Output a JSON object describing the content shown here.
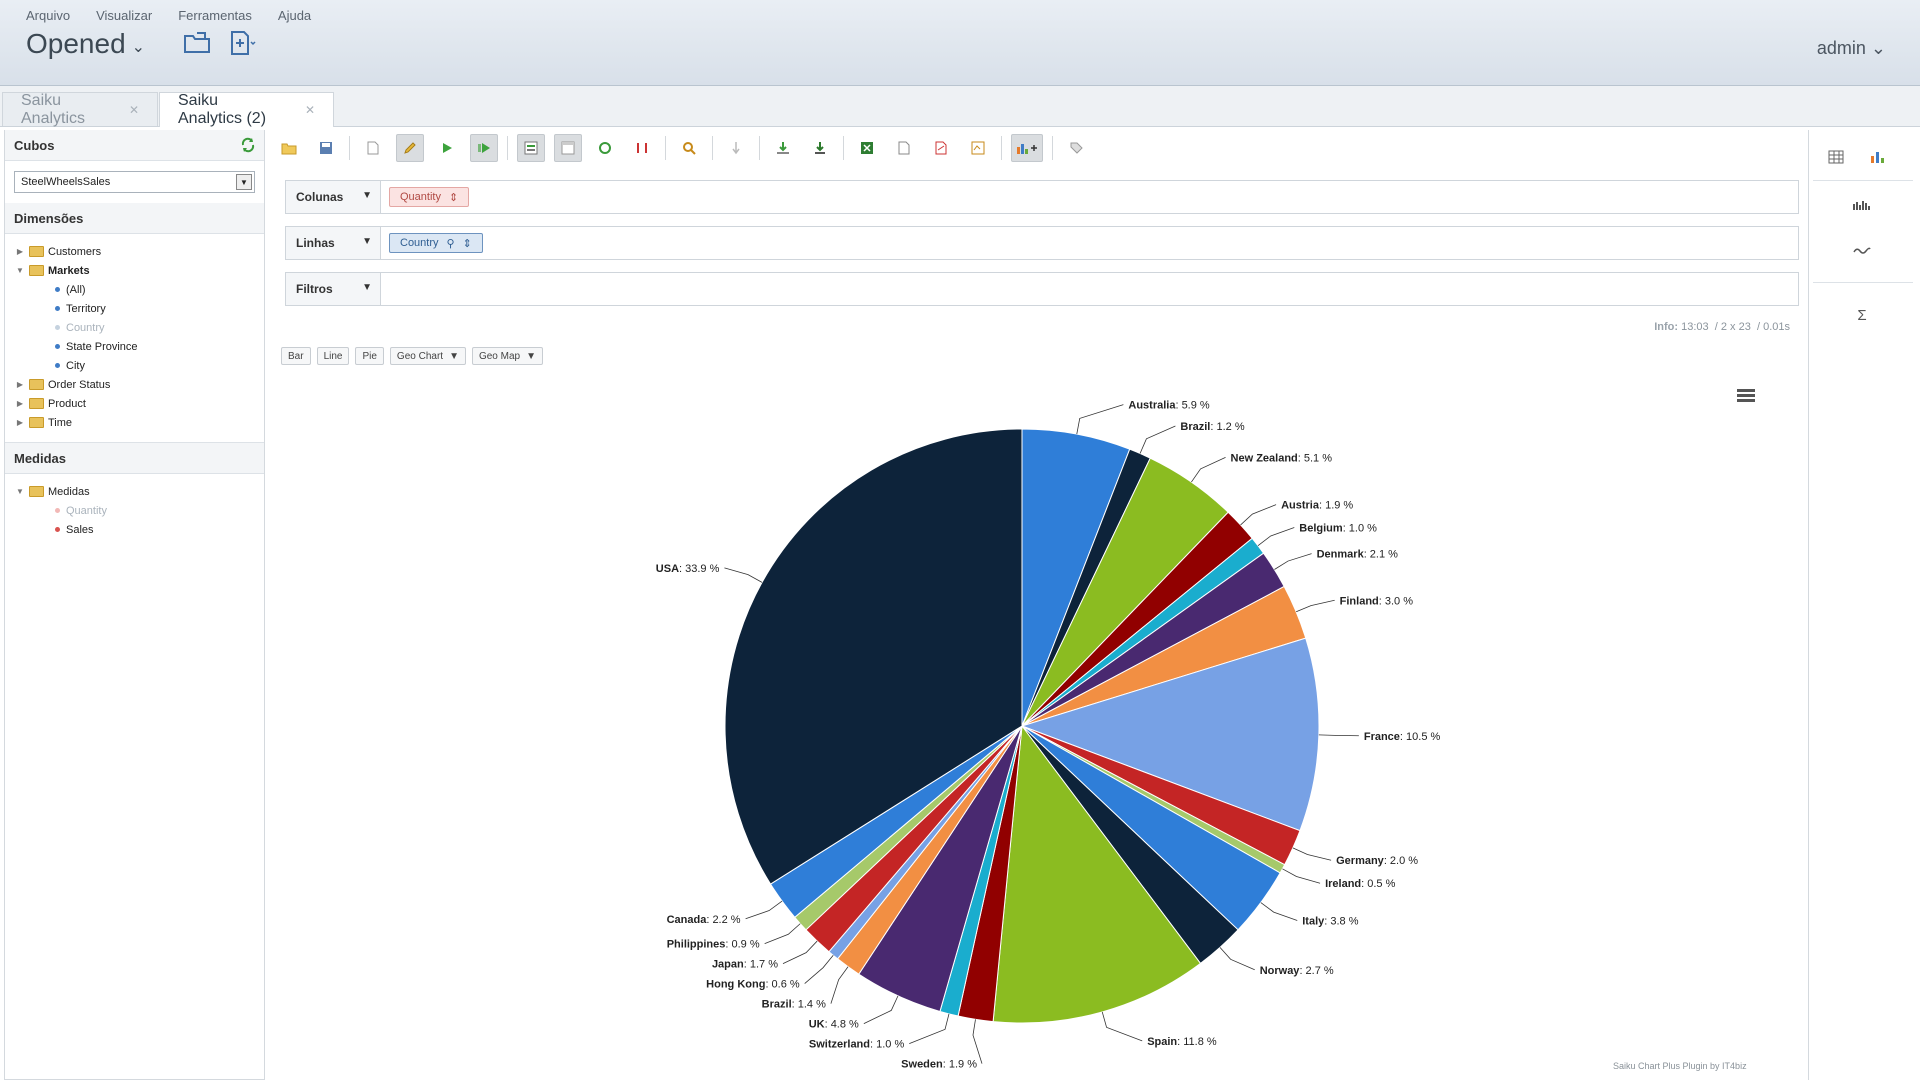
{
  "header": {
    "menu": [
      "Arquivo",
      "Visualizar",
      "Ferramentas",
      "Ajuda"
    ],
    "title": "Opened",
    "user": "admin"
  },
  "tabs": [
    {
      "label": "Saiku Analytics",
      "active": false
    },
    {
      "label": "Saiku Analytics (2)",
      "active": true
    }
  ],
  "left": {
    "cubes_title": "Cubos",
    "cube_selected": "SteelWheelsSales",
    "dimensions_title": "Dimensões",
    "dimensions": {
      "customers": "Customers",
      "markets": "Markets",
      "levels": [
        "(All)",
        "Territory",
        "Country",
        "State Province",
        "City"
      ],
      "order_status": "Order Status",
      "product": "Product",
      "time": "Time"
    },
    "measures_title": "Medidas",
    "measures_folder": "Medidas",
    "measures": [
      "Quantity",
      "Sales"
    ]
  },
  "query": {
    "columns_label": "Colunas",
    "columns_pill": "Quantity",
    "rows_label": "Linhas",
    "rows_pill": "Country",
    "filters_label": "Filtros"
  },
  "info": {
    "label": "Info:",
    "time": "13:03",
    "size": "2 x 23",
    "duration": "0.01s"
  },
  "chart_buttons": [
    "Bar",
    "Line",
    "Pie",
    "Geo Chart",
    "Geo Map"
  ],
  "footer": "Saiku Chart Plus Plugin by IT4biz",
  "chart_data": {
    "type": "pie",
    "title": "",
    "categories": [
      "Australia",
      "Brazil",
      "New Zealand",
      "Austria",
      "Belgium",
      "Denmark",
      "Finland",
      "France",
      "Germany",
      "Ireland",
      "Italy",
      "Norway",
      "Spain",
      "Sweden",
      "Switzerland",
      "UK",
      "Brazil",
      "Hong Kong",
      "Japan",
      "Philippines",
      "Canada",
      "USA"
    ],
    "values": [
      5.9,
      1.2,
      5.1,
      1.9,
      1.0,
      2.1,
      3.0,
      10.5,
      2.0,
      0.5,
      3.8,
      2.7,
      11.8,
      1.9,
      1.0,
      4.8,
      1.4,
      0.6,
      1.7,
      0.9,
      2.2,
      33.9
    ],
    "colors": [
      "#2f7ed8",
      "#0d233a",
      "#8bbc21",
      "#910000",
      "#1aadce",
      "#492970",
      "#f28f43",
      "#77a1e5",
      "#c42525",
      "#a6c96a",
      "#2f7ed8",
      "#0d233a",
      "#8bbc21",
      "#910000",
      "#1aadce",
      "#492970",
      "#f28f43",
      "#77a1e5",
      "#c42525",
      "#a6c96a",
      "#2f7ed8",
      "#0d233a"
    ],
    "unit": "%"
  }
}
